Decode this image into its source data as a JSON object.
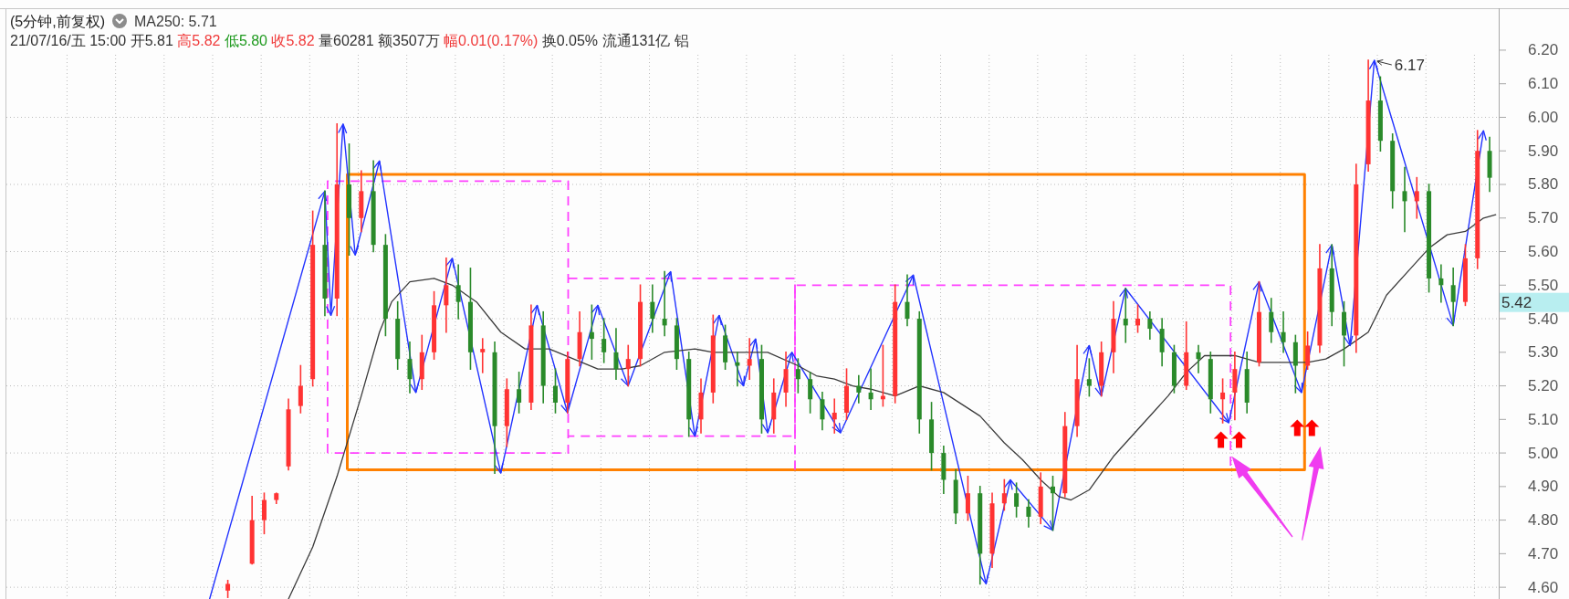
{
  "chart_data": {
    "type": "candlestick",
    "title": "(5分钟,前复权)",
    "subtitle": "21/07/16/五 15:00 开5.81 高5.82 低5.80 收5.82 量60281 额3507万 幅0.01(0.17%) 换0.05% 流通131亿 铝",
    "categories": [
      null,
      null,
      null,
      null,
      null,
      null,
      null,
      null,
      null,
      null,
      null,
      null,
      null,
      null,
      null,
      null,
      null,
      null,
      null,
      null,
      null,
      null,
      null,
      null,
      null,
      null,
      null,
      null,
      null,
      null,
      null,
      null,
      null,
      null,
      null,
      null,
      null,
      null,
      null,
      null,
      null,
      null,
      null,
      null,
      null,
      null,
      null,
      null,
      null,
      null,
      null,
      null,
      null,
      null,
      null,
      null,
      null,
      null,
      null,
      null,
      null,
      null,
      null,
      null,
      null,
      null,
      null,
      null,
      null,
      null,
      null,
      null,
      null,
      null,
      null,
      null,
      null,
      null,
      null,
      null,
      null,
      null,
      null,
      null,
      null,
      null,
      null,
      null,
      null,
      null,
      null,
      null,
      null,
      null,
      null,
      null,
      null,
      null,
      null,
      null,
      null,
      null,
      null,
      null,
      null,
      null,
      null,
      null,
      null,
      null,
      null,
      null,
      null,
      null,
      null,
      null,
      null,
      null,
      null,
      null,
      null,
      null,
      null,
      null,
      null,
      null,
      null,
      null,
      null,
      null,
      null,
      null,
      null,
      null,
      null,
      null,
      null,
      null,
      null,
      null,
      null,
      null,
      null,
      null,
      null,
      null,
      null,
      null,
      null,
      null,
      null,
      null,
      null,
      null,
      null,
      null,
      null,
      null,
      null,
      null,
      null,
      null,
      null,
      null,
      null,
      null,
      null,
      null,
      null,
      null,
      null,
      null,
      null,
      null,
      null,
      null,
      null,
      null,
      null,
      null,
      null,
      null,
      null,
      null,
      null,
      null,
      null,
      null,
      null,
      null,
      null,
      null,
      null,
      null,
      null,
      null,
      null,
      null,
      null,
      null,
      null,
      null,
      null,
      null,
      null,
      null,
      null,
      null,
      null,
      null,
      null,
      null,
      null,
      null,
      null,
      null,
      null,
      null,
      null,
      null,
      null,
      null,
      null,
      null,
      null,
      null,
      null,
      null,
      null,
      null,
      null,
      null,
      null,
      null,
      null,
      null,
      null,
      null,
      null,
      null,
      null,
      null,
      null,
      null,
      null,
      null
    ],
    "ohlc": [
      null,
      null,
      null,
      null,
      null,
      null,
      null,
      null,
      null,
      null,
      null,
      null,
      null,
      null,
      null,
      null,
      null,
      null,
      null,
      null,
      null,
      null,
      null,
      null,
      null,
      null,
      null,
      null,
      null,
      null,
      null,
      null,
      null,
      null,
      null,
      null,
      [
        4.59,
        4.62,
        4.57,
        4.61
      ],
      null,
      null,
      null,
      [
        4.67,
        4.87,
        4.67,
        4.8
      ],
      null,
      [
        4.8,
        4.88,
        4.76,
        4.86
      ],
      null,
      [
        4.86,
        4.88,
        4.85,
        4.88
      ],
      null,
      [
        4.96,
        5.16,
        4.95,
        5.13
      ],
      null,
      [
        5.14,
        5.26,
        5.12,
        5.2
      ],
      null,
      [
        5.22,
        5.72,
        5.2,
        5.62
      ],
      null,
      [
        5.62,
        5.78,
        5.41,
        5.46
      ],
      null,
      [
        5.46,
        5.98,
        5.41,
        5.8
      ],
      null,
      [
        5.8,
        5.92,
        5.59,
        5.7
      ],
      null,
      [
        5.7,
        5.84,
        5.66,
        5.78
      ],
      null,
      [
        5.78,
        5.87,
        5.6,
        5.62
      ],
      null,
      [
        5.62,
        5.65,
        5.35,
        5.4
      ],
      null,
      [
        5.4,
        5.45,
        5.25,
        5.28
      ],
      null,
      [
        5.28,
        5.33,
        5.18,
        5.22
      ],
      null,
      [
        5.22,
        5.35,
        5.19,
        5.3
      ],
      null,
      [
        5.3,
        5.48,
        5.28,
        5.44
      ],
      null,
      [
        5.44,
        5.58,
        5.36,
        5.5
      ],
      null,
      [
        5.5,
        5.56,
        5.4,
        5.45
      ],
      null,
      [
        5.45,
        5.55,
        5.25,
        5.3
      ],
      null,
      [
        5.3,
        5.34,
        5.24,
        5.31
      ],
      null,
      [
        5.3,
        5.33,
        4.94,
        5.08
      ],
      null,
      [
        5.08,
        5.22,
        5.02,
        5.19
      ],
      null,
      [
        5.19,
        5.24,
        5.12,
        5.15
      ],
      null,
      [
        5.15,
        5.44,
        5.13,
        5.38
      ],
      null,
      [
        5.38,
        5.42,
        5.15,
        5.2
      ],
      null,
      [
        5.2,
        5.25,
        5.12,
        5.15
      ],
      null,
      [
        5.15,
        5.3,
        5.12,
        5.28
      ],
      null,
      [
        5.28,
        5.42,
        5.26,
        5.36
      ],
      null,
      [
        5.36,
        5.44,
        5.28,
        5.34
      ],
      null,
      [
        5.34,
        5.4,
        5.27,
        5.3
      ],
      null,
      [
        5.3,
        5.37,
        5.22,
        5.25
      ],
      null,
      [
        5.25,
        5.32,
        5.2,
        5.28
      ],
      null,
      [
        5.28,
        5.5,
        5.26,
        5.45
      ],
      null,
      [
        5.45,
        5.5,
        5.36,
        5.4
      ],
      null,
      [
        5.4,
        5.54,
        5.35,
        5.38
      ],
      null,
      [
        5.38,
        5.4,
        5.25,
        5.28
      ],
      null,
      [
        5.28,
        5.3,
        5.05,
        5.1
      ],
      null,
      [
        5.1,
        5.22,
        5.06,
        5.18
      ],
      null,
      [
        5.18,
        5.41,
        5.15,
        5.35
      ],
      null,
      [
        5.35,
        5.38,
        5.25,
        5.27
      ],
      null,
      [
        5.27,
        5.3,
        5.2,
        5.26
      ],
      null,
      [
        5.26,
        5.34,
        5.22,
        5.28
      ],
      null,
      [
        5.28,
        5.32,
        5.06,
        5.1
      ],
      null,
      [
        5.1,
        5.22,
        5.06,
        5.18
      ],
      null,
      [
        5.18,
        5.3,
        5.14,
        5.25
      ],
      null,
      [
        5.25,
        5.28,
        5.18,
        5.22
      ],
      null,
      [
        5.22,
        5.24,
        5.12,
        5.16
      ],
      null,
      [
        5.16,
        5.18,
        5.07,
        5.1
      ],
      null,
      [
        5.1,
        5.16,
        5.06,
        5.12
      ],
      null,
      [
        5.12,
        5.25,
        5.1,
        5.2
      ],
      null,
      [
        5.2,
        5.23,
        5.15,
        5.18
      ],
      null,
      [
        5.18,
        5.25,
        5.13,
        5.16
      ],
      null,
      [
        5.16,
        5.32,
        5.14,
        5.17
      ],
      null,
      [
        5.17,
        5.5,
        5.15,
        5.45
      ],
      null,
      [
        5.45,
        5.53,
        5.38,
        5.4
      ],
      null,
      [
        5.4,
        5.42,
        5.06,
        5.1
      ],
      null,
      [
        5.1,
        5.15,
        4.95,
        5.0
      ],
      null,
      [
        5.0,
        5.02,
        4.88,
        4.92
      ],
      null,
      [
        4.92,
        4.95,
        4.79,
        4.82
      ],
      null,
      [
        4.82,
        4.93,
        4.8,
        4.88
      ],
      null,
      [
        4.88,
        4.9,
        4.61,
        4.7
      ],
      null,
      [
        4.7,
        4.88,
        4.66,
        4.85
      ],
      null,
      [
        4.85,
        4.92,
        4.83,
        4.88
      ],
      null,
      [
        4.88,
        4.91,
        4.81,
        4.84
      ],
      null,
      [
        4.84,
        4.86,
        4.78,
        4.81
      ],
      null,
      [
        4.81,
        4.94,
        4.79,
        4.9
      ],
      null,
      [
        4.9,
        4.93,
        4.77,
        4.88
      ],
      null,
      [
        4.88,
        5.12,
        4.87,
        5.08
      ],
      null,
      [
        5.08,
        5.32,
        5.05,
        5.22
      ],
      null,
      [
        5.22,
        5.28,
        5.17,
        5.2
      ],
      null,
      [
        5.2,
        5.33,
        5.17,
        5.3
      ],
      null,
      [
        5.3,
        5.45,
        5.24,
        5.4
      ],
      null,
      [
        5.4,
        5.49,
        5.33,
        5.38
      ],
      null,
      [
        5.38,
        5.44,
        5.36,
        5.4
      ],
      null,
      [
        5.4,
        5.42,
        5.34,
        5.37
      ],
      null,
      [
        5.37,
        5.4,
        5.26,
        5.3
      ],
      null,
      [
        5.3,
        5.32,
        5.18,
        5.2
      ],
      null,
      [
        5.2,
        5.39,
        5.19,
        5.3
      ],
      null,
      [
        5.3,
        5.32,
        5.24,
        5.28
      ],
      null,
      [
        5.28,
        5.3,
        5.12,
        5.16
      ],
      null,
      [
        5.16,
        5.22,
        5.09,
        5.18
      ],
      null,
      [
        5.18,
        5.3,
        5.1,
        5.25
      ],
      null,
      [
        5.25,
        5.3,
        5.12,
        5.15
      ],
      null,
      [
        5.27,
        5.51,
        5.26,
        5.42
      ],
      null,
      [
        5.42,
        5.46,
        5.33,
        5.36
      ],
      null,
      [
        5.36,
        5.42,
        5.3,
        5.33
      ],
      null,
      [
        5.33,
        5.35,
        5.18,
        5.26
      ],
      null,
      [
        5.26,
        5.36,
        5.25,
        5.32
      ],
      null,
      [
        5.32,
        5.62,
        5.3,
        5.55
      ],
      null,
      [
        5.55,
        5.62,
        5.38,
        5.42
      ],
      null,
      [
        5.42,
        5.45,
        5.26,
        5.35
      ],
      null,
      [
        5.35,
        5.86,
        5.3,
        5.8
      ],
      null,
      [
        5.86,
        6.17,
        5.84,
        6.05
      ],
      null,
      [
        6.05,
        6.12,
        5.9,
        5.93
      ],
      null,
      [
        5.93,
        5.95,
        5.73,
        5.78
      ],
      null,
      [
        5.78,
        5.85,
        5.66,
        5.75
      ],
      null,
      [
        5.75,
        5.82,
        5.7,
        5.78
      ],
      null,
      [
        5.78,
        5.8,
        5.48,
        5.52
      ],
      null,
      [
        5.52,
        5.56,
        5.45,
        5.5
      ],
      null,
      [
        5.5,
        5.55,
        5.38,
        5.45
      ],
      null,
      [
        5.45,
        5.62,
        5.44,
        5.58
      ],
      null,
      [
        5.58,
        5.96,
        5.55,
        5.9
      ],
      null,
      [
        5.9,
        5.94,
        5.78,
        5.82
      ],
      null
    ],
    "colors": [
      null,
      null,
      null,
      null,
      null,
      null,
      null,
      null,
      null,
      null,
      null,
      null,
      null,
      null,
      null,
      null,
      null,
      null,
      null,
      null,
      null,
      null,
      null,
      null,
      null,
      null,
      null,
      null,
      null,
      null,
      null,
      null,
      null,
      null,
      null,
      null,
      "#ff3333",
      null,
      null,
      null,
      "#ff3333",
      null,
      "#ff3333",
      null,
      "#ff3333",
      null,
      "#ff3333",
      null,
      "#ff3333",
      null,
      "#ff3333",
      null,
      "#2a8a2a",
      null,
      "#ff3333",
      null,
      "#2a8a2a",
      null,
      "#ff3333",
      null,
      "#2a8a2a",
      null,
      "#2a8a2a",
      null,
      "#2a8a2a",
      null,
      "#2a8a2a",
      null,
      "#ff3333",
      null,
      "#ff3333",
      null,
      "#ff3333",
      null,
      "#2a8a2a",
      null,
      "#2a8a2a",
      null,
      "#ff3333",
      null,
      "#2a8a2a",
      null,
      "#ff3333",
      null,
      "#2a8a2a",
      null,
      "#ff3333",
      null,
      "#2a8a2a",
      null,
      "#2a8a2a",
      null,
      "#ff3333",
      null,
      "#ff3333",
      null,
      "#2a8a2a",
      null,
      "#2a8a2a",
      null,
      "#2a8a2a",
      null,
      "#ff3333",
      null,
      "#ff3333",
      null,
      "#2a8a2a",
      null,
      "#2a8a2a",
      null,
      "#2a8a2a",
      null,
      "#2a8a2a",
      null,
      "#ff3333",
      null,
      "#ff3333",
      null,
      "#2a8a2a",
      null,
      "#2a8a2a",
      null,
      "#ff3333",
      null,
      "#2a8a2a",
      null,
      "#ff3333",
      null,
      "#ff3333",
      null,
      "#2a8a2a",
      null,
      "#2a8a2a",
      null,
      "#2a8a2a",
      null,
      "#ff3333",
      null,
      "#ff3333",
      null,
      "#2a8a2a",
      null,
      "#2a8a2a",
      null,
      "#ff3333",
      null,
      "#ff3333",
      null,
      "#2a8a2a",
      null,
      "#2a8a2a",
      null,
      "#2a8a2a",
      null,
      "#2a8a2a",
      null,
      "#2a8a2a",
      null,
      "#ff3333",
      null,
      "#2a8a2a",
      null,
      "#ff3333",
      null,
      "#ff3333",
      null,
      "#2a8a2a",
      null,
      "#2a8a2a",
      null,
      "#ff3333",
      null,
      "#2a8a2a",
      null,
      "#ff3333",
      null,
      "#ff3333",
      null,
      "#2a8a2a",
      null,
      "#ff3333",
      null,
      "#ff3333",
      null,
      "#2a8a2a",
      null,
      "#ff3333",
      null,
      "#2a8a2a",
      null,
      "#2a8a2a",
      null,
      "#2a8a2a",
      null,
      "#ff3333",
      null,
      "#2a8a2a",
      null,
      "#2a8a2a",
      null,
      "#ff3333",
      null,
      "#ff3333",
      null,
      "#2a8a2a",
      null,
      "#ff3333",
      null,
      "#2a8a2a",
      null,
      "#2a8a2a",
      null,
      "#2a8a2a",
      null,
      "#ff3333",
      null,
      "#ff3333",
      null,
      "#2a8a2a",
      null,
      "#2a8a2a",
      null,
      "#ff3333",
      null,
      "#ff3333",
      null,
      "#2a8a2a",
      null,
      "#2a8a2a",
      null,
      "#2a8a2a",
      null,
      "#ff3333",
      null,
      "#2a8a2a",
      null,
      "#2a8a2a",
      null,
      "#2a8a2a",
      null,
      "#ff3333",
      null,
      "#ff3333",
      null,
      "#2a8a2a",
      null
    ],
    "series": [
      {
        "type": "line",
        "color": "#2233ff",
        "values": [
          null,
          null,
          null,
          null,
          null,
          null,
          null,
          null,
          null,
          null,
          null,
          null,
          null,
          null,
          null,
          null,
          null,
          null,
          null,
          null,
          null,
          null,
          null,
          null,
          null,
          null,
          null,
          null,
          null,
          null,
          null,
          null,
          null,
          4.565,
          null,
          null,
          null,
          null,
          null,
          null,
          null,
          null,
          null,
          null,
          null,
          null,
          null,
          null,
          null,
          null,
          null,
          null,
          5.78,
          5.41,
          null,
          5.98,
          null,
          5.59,
          null,
          null,
          null,
          5.87,
          null,
          null,
          null,
          null,
          null,
          5.18,
          null,
          null,
          null,
          null,
          null,
          5.58,
          null,
          null,
          null,
          null,
          null,
          null,
          null,
          4.94,
          null,
          null,
          null,
          null,
          null,
          5.44,
          null,
          null,
          null,
          null,
          5.12,
          null,
          null,
          null,
          null,
          5.44,
          null,
          null,
          null,
          null,
          5.2,
          null,
          null,
          null,
          null,
          null,
          null,
          5.54,
          null,
          null,
          null,
          5.05,
          null,
          null,
          null,
          5.41,
          null,
          null,
          null,
          5.2,
          null,
          5.34,
          null,
          5.06,
          null,
          null,
          null,
          5.3,
          null,
          null,
          null,
          null,
          null,
          null,
          null,
          5.06,
          null,
          null,
          null,
          null,
          null,
          null,
          null,
          null,
          null,
          null,
          null,
          5.53,
          null,
          null,
          null,
          null,
          null,
          null,
          null,
          null,
          null,
          null,
          null,
          4.61,
          null,
          null,
          null,
          4.92,
          null,
          null,
          null,
          null,
          null,
          null,
          4.77,
          null,
          null,
          null,
          null,
          null,
          5.32,
          null,
          5.17,
          null,
          null,
          null,
          5.49,
          null,
          null,
          null,
          null,
          null,
          null,
          null,
          null,
          null,
          null,
          null,
          null,
          null,
          null,
          null,
          null,
          5.09,
          null,
          null,
          null,
          null,
          5.51,
          null,
          null,
          null,
          null,
          null,
          null,
          5.18,
          null,
          null,
          null,
          null,
          5.62,
          null,
          null,
          5.32,
          null,
          null,
          null,
          6.17,
          null,
          null,
          null,
          null,
          null,
          null,
          null,
          null,
          null,
          null,
          null,
          null,
          5.38,
          null,
          null,
          null,
          null,
          5.96,
          null,
          null
        ]
      },
      {
        "type": "line",
        "name": "MA250: 5.71",
        "color": "#3a3a3a",
        "values": [
          null,
          null,
          null,
          null,
          null,
          null,
          null,
          null,
          null,
          null,
          null,
          null,
          null,
          null,
          null,
          null,
          null,
          null,
          null,
          null,
          null,
          null,
          null,
          null,
          null,
          null,
          null,
          null,
          null,
          null,
          null,
          null,
          null,
          null,
          null,
          null,
          null,
          null,
          null,
          null,
          null,
          null,
          null,
          null,
          null,
          null,
          4.565,
          null,
          null,
          null,
          4.72,
          null,
          null,
          null,
          4.93,
          null,
          null,
          null,
          5.17,
          null,
          null,
          5.36,
          null,
          5.45,
          null,
          null,
          5.51,
          null,
          null,
          null,
          5.52,
          null,
          null,
          5.5,
          null,
          null,
          null,
          5.45,
          null,
          null,
          null,
          5.36,
          null,
          null,
          null,
          5.31,
          null,
          null,
          null,
          5.31,
          null,
          null,
          null,
          5.28,
          null,
          null,
          null,
          5.25,
          null,
          null,
          null,
          5.25,
          null,
          null,
          5.26,
          null,
          null,
          null,
          5.3,
          null,
          null,
          null,
          null,
          5.31,
          null,
          null,
          5.3,
          null,
          null,
          null,
          null,
          null,
          null,
          null,
          null,
          5.3,
          null,
          null,
          null,
          null,
          5.26,
          null,
          null,
          5.23,
          null,
          null,
          5.22,
          null,
          null,
          5.2,
          null,
          null,
          5.19,
          null,
          null,
          null,
          5.17,
          null,
          null,
          null,
          5.2,
          null,
          null,
          null,
          5.18,
          null,
          null,
          null,
          null,
          null,
          5.11,
          null,
          null,
          null,
          5.03,
          null,
          null,
          4.98,
          null,
          null,
          4.92,
          null,
          null,
          4.87,
          null,
          4.86,
          null,
          null,
          4.89,
          null,
          null,
          null,
          4.99,
          null,
          null,
          null,
          null,
          5.09,
          null,
          null,
          null,
          5.17,
          null,
          null,
          5.24,
          null,
          null,
          5.29,
          null,
          null,
          null,
          null,
          5.29,
          null,
          5.28,
          null,
          5.27,
          null,
          null,
          null,
          5.27,
          null,
          null,
          null,
          5.27,
          null,
          null,
          5.28,
          null,
          null,
          5.31,
          null,
          null,
          null,
          5.36,
          null,
          null,
          5.47,
          null,
          null,
          null,
          5.55,
          null,
          null,
          5.61,
          null,
          null,
          5.65,
          null,
          null,
          5.66,
          null,
          null,
          5.7,
          null,
          5.71
        ]
      }
    ],
    "ylim": [
      4.565,
      6.325
    ],
    "yticks": [
      {
        "value": 4.6,
        "label": "4.60"
      },
      {
        "value": 4.7,
        "label": "4.70"
      },
      {
        "value": 4.8,
        "label": "4.80"
      },
      {
        "value": 4.9,
        "label": "4.90"
      },
      {
        "value": 5.0,
        "label": "5.00"
      },
      {
        "value": 5.1,
        "label": "5.10"
      },
      {
        "value": 5.2,
        "label": "5.20"
      },
      {
        "value": 5.3,
        "label": "5.30"
      },
      {
        "value": 5.4,
        "label": "5.40"
      },
      {
        "value": 5.5,
        "label": "5.50"
      },
      {
        "value": 5.6,
        "label": "5.60"
      },
      {
        "value": 5.7,
        "label": "5.70"
      },
      {
        "value": 5.8,
        "label": "5.80"
      },
      {
        "value": 5.9,
        "label": "5.90"
      },
      {
        "value": 6.0,
        "label": "6.00"
      },
      {
        "value": 6.1,
        "label": "6.10"
      },
      {
        "value": 6.2,
        "label": "6.20"
      }
    ],
    "grid": true,
    "legend": "top left",
    "tick_labels": "y",
    "annotations": [
      "6.17",
      "5.42"
    ]
  }
}
